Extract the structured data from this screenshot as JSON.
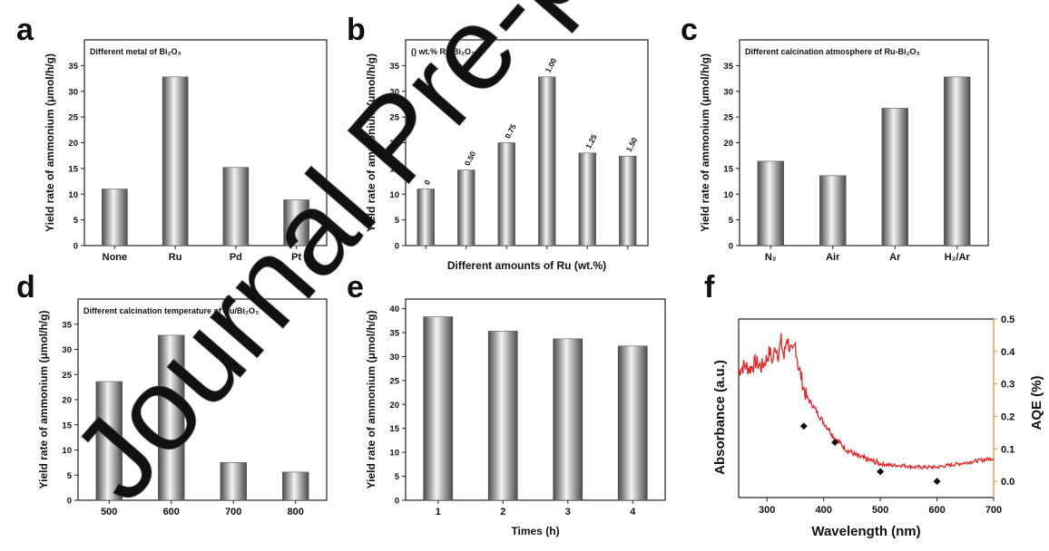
{
  "figure": {
    "watermark": "Journal Pre-proof"
  },
  "colors": {
    "bar_dark": "#4a4a4a",
    "bar_light": "#f4f4f4",
    "spectrum": "#e8262a",
    "right_axis": "#e08a2c"
  },
  "chart_data": [
    {
      "panel": "a",
      "type": "bar",
      "title": "Different metal  of Bi₂O₃",
      "ylabel": "Yield rate of ammonium (μmol/h/g)",
      "xlabel": "",
      "categories": [
        "None",
        "Ru",
        "Pd",
        "Pt"
      ],
      "values": [
        11.0,
        32.8,
        15.2,
        8.9
      ],
      "ylim": [
        0,
        40
      ],
      "yticks": [
        0,
        5,
        10,
        15,
        20,
        25,
        30,
        35
      ],
      "data_labels": []
    },
    {
      "panel": "b",
      "type": "bar",
      "title": "() wt.% Ru/Bi₂O₃",
      "ylabel": "Yield rate of ammonium (μmol/h/g)",
      "xlabel": "Different amounts of Ru (wt.%)",
      "categories": [
        "",
        "",
        "",
        "",
        "",
        ""
      ],
      "values": [
        11.0,
        14.7,
        20.0,
        32.8,
        18.0,
        17.4
      ],
      "data_labels": [
        "0",
        "0.50",
        "0.75",
        "1.00",
        "1.25",
        "1.50"
      ],
      "ylim": [
        0,
        40
      ],
      "yticks": [
        0,
        5,
        10,
        15,
        20,
        25,
        30,
        35
      ]
    },
    {
      "panel": "c",
      "type": "bar",
      "title": "Different calcination atmosphere of Ru-Bi₂O₃",
      "ylabel": "Yield rate of ammonium (μmol/h/g)",
      "xlabel": "",
      "categories": [
        "N₂",
        "Air",
        "Ar",
        "H₂/Ar"
      ],
      "values": [
        16.4,
        13.6,
        26.7,
        32.8
      ],
      "ylim": [
        0,
        40
      ],
      "yticks": [
        0,
        5,
        10,
        15,
        20,
        25,
        30,
        35
      ],
      "data_labels": []
    },
    {
      "panel": "d",
      "type": "bar",
      "title": "Different calcination temperature of Ru/Bi₂O₃",
      "ylabel": "Yield rate of ammonium (μmol/h/g)",
      "xlabel": "",
      "categories": [
        "500",
        "600",
        "700",
        "800"
      ],
      "values": [
        23.6,
        32.8,
        7.5,
        5.6
      ],
      "ylim": [
        0,
        40
      ],
      "yticks": [
        0,
        5,
        10,
        15,
        20,
        25,
        30,
        35
      ],
      "data_labels": []
    },
    {
      "panel": "e",
      "type": "bar",
      "title": "",
      "ylabel": "Yield rate of ammonium (μmol/h/g)",
      "xlabel": "Times (h)",
      "categories": [
        "1",
        "2",
        "3",
        "4"
      ],
      "values": [
        38.3,
        35.3,
        33.7,
        32.2
      ],
      "ylim": [
        0,
        42
      ],
      "yticks": [
        0,
        5,
        10,
        15,
        20,
        25,
        30,
        35,
        40
      ],
      "data_labels": []
    },
    {
      "panel": "f",
      "type": "line",
      "title": "",
      "xlabel": "Wavelength (nm)",
      "ylabel": "Absorbance (a.u.)",
      "y2label": "AQE (%)",
      "xlim": [
        250,
        700
      ],
      "xticks": [
        300,
        400,
        500,
        600,
        700
      ],
      "y2lim": [
        -0.05,
        0.5
      ],
      "y2ticks": [
        0.0,
        0.1,
        0.2,
        0.3,
        0.4,
        0.5
      ],
      "series": [
        {
          "kind": "absorbance",
          "x": [
            250,
            260,
            270,
            280,
            290,
            300,
            305,
            310,
            315,
            320,
            325,
            330,
            335,
            340,
            345,
            350,
            355,
            360,
            365,
            370,
            380,
            390,
            400,
            410,
            420,
            430,
            440,
            450,
            460,
            470,
            480,
            490,
            500,
            520,
            540,
            560,
            580,
            600,
            620,
            640,
            660,
            680,
            700
          ],
          "y": [
            0.71,
            0.74,
            0.72,
            0.76,
            0.73,
            0.78,
            0.82,
            0.76,
            0.85,
            0.8,
            0.88,
            0.78,
            0.9,
            0.84,
            0.8,
            0.86,
            0.74,
            0.68,
            0.61,
            0.56,
            0.52,
            0.47,
            0.42,
            0.38,
            0.33,
            0.3,
            0.27,
            0.25,
            0.23,
            0.22,
            0.21,
            0.2,
            0.19,
            0.18,
            0.18,
            0.17,
            0.17,
            0.17,
            0.18,
            0.19,
            0.2,
            0.21,
            0.22
          ]
        },
        {
          "kind": "AQE",
          "x": [
            365,
            420,
            500,
            600
          ],
          "y": [
            0.17,
            0.12,
            0.03,
            0.0
          ]
        }
      ]
    }
  ]
}
